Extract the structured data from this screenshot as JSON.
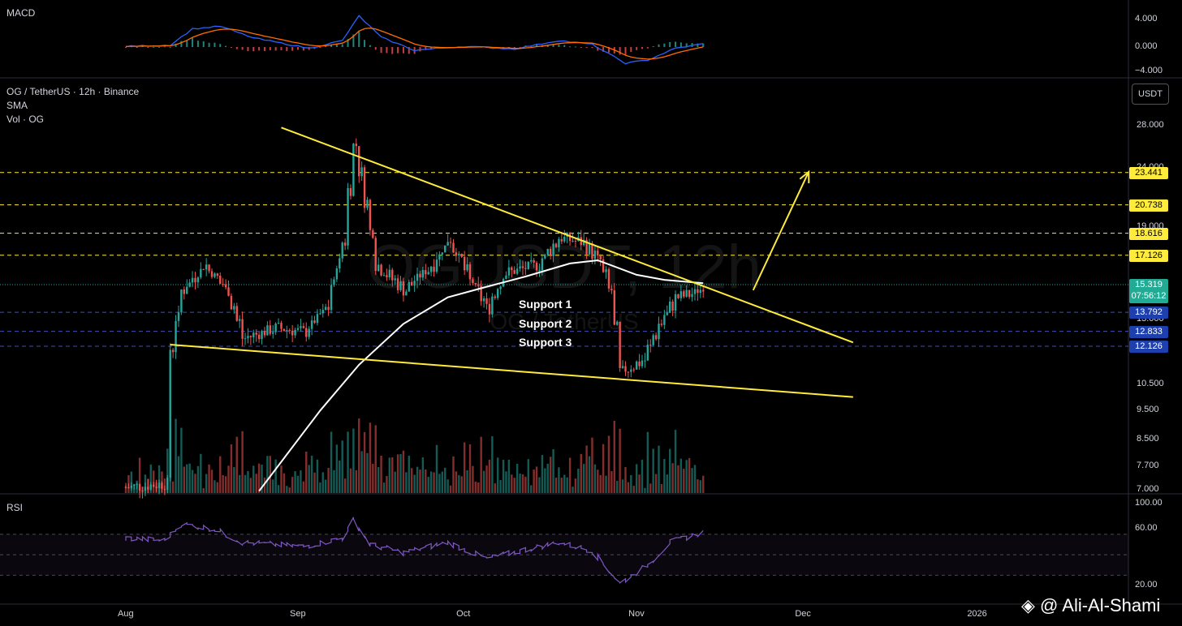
{
  "symbol_title": "OG / TetherUS · 12h · Binance",
  "indicator_sma": "SMA",
  "indicator_vol": "Vol · OG",
  "macd_title": "MACD",
  "rsi_title": "RSI",
  "currency_button": "USDT",
  "watermark_big": "OGUSDT, 12h",
  "watermark_small": "OG / TetherUS",
  "credit": "@ Ali-Al-Shami",
  "supports": [
    "Support 1",
    "Support 2",
    "Support 3"
  ],
  "colors": {
    "up": "#26a69a",
    "down": "#ef5350",
    "sma": "#ffffff",
    "trendline": "#ffeb3b",
    "macd": "#2962ff",
    "signal": "#ff6d00",
    "rsi": "#7e57c2"
  },
  "chart_data": {
    "type": "line",
    "x_axis_labels": [
      "Aug",
      "Sep",
      "Oct",
      "Nov",
      "Dec",
      "2026"
    ],
    "price_axis": {
      "scale": "log",
      "ticks": [
        "28.000",
        "24.000",
        "19.000",
        "13.000",
        "10.500",
        "9.500",
        "8.500",
        "7.700",
        "7.000"
      ]
    },
    "macd_axis": {
      "ticks": [
        "4.000",
        "0.000",
        "−4.000"
      ]
    },
    "rsi_axis": {
      "ticks": [
        "100.00",
        "60.00",
        "20.00"
      ],
      "bands": [
        70,
        50,
        30
      ]
    },
    "level_labels": [
      {
        "value": 23.441,
        "text": "23.441",
        "style": "yellow"
      },
      {
        "value": 20.738,
        "text": "20.738",
        "style": "yellow"
      },
      {
        "value": 18.616,
        "text": "18.616",
        "style": "yellow"
      },
      {
        "value": 17.126,
        "text": "17.126",
        "style": "yellow"
      },
      {
        "value": 13.792,
        "text": "13.792",
        "style": "blue"
      },
      {
        "value": 12.833,
        "text": "12.833",
        "style": "blue"
      },
      {
        "value": 12.126,
        "text": "12.126",
        "style": "blue"
      }
    ],
    "current_price": {
      "value": 15.319,
      "text": "15.319",
      "countdown": "07:56:12"
    },
    "trendlines": [
      {
        "name": "upper",
        "from": {
          "date": "2025-08-29",
          "price": 27.8
        },
        "to": {
          "date": "2025-12-10",
          "price": 12.3
        }
      },
      {
        "name": "lower",
        "from": {
          "date": "2025-08-09",
          "price": 12.2
        },
        "to": {
          "date": "2025-12-10",
          "price": 10.0
        }
      }
    ],
    "projection_arrow": {
      "from": {
        "date": "2025-11-22",
        "price": 15.0
      },
      "to": {
        "date": "2025-12-02",
        "price": 23.5
      }
    },
    "price_path": [
      {
        "date": "2025-08-01",
        "price": 7.1
      },
      {
        "date": "2025-08-08",
        "price": 7.2
      },
      {
        "date": "2025-08-09",
        "price": 12.0
      },
      {
        "date": "2025-08-11",
        "price": 15.0
      },
      {
        "date": "2025-08-15",
        "price": 16.5
      },
      {
        "date": "2025-08-19",
        "price": 15.0
      },
      {
        "date": "2025-08-22",
        "price": 12.5
      },
      {
        "date": "2025-08-28",
        "price": 13.0
      },
      {
        "date": "2025-09-02",
        "price": 12.8
      },
      {
        "date": "2025-09-06",
        "price": 14.0
      },
      {
        "date": "2025-09-09",
        "price": 18.0
      },
      {
        "date": "2025-09-11",
        "price": 26.0
      },
      {
        "date": "2025-09-13",
        "price": 21.0
      },
      {
        "date": "2025-09-15",
        "price": 16.5
      },
      {
        "date": "2025-09-20",
        "price": 15.0
      },
      {
        "date": "2025-09-25",
        "price": 16.5
      },
      {
        "date": "2025-09-28",
        "price": 18.2
      },
      {
        "date": "2025-10-02",
        "price": 15.5
      },
      {
        "date": "2025-10-05",
        "price": 14.0
      },
      {
        "date": "2025-10-08",
        "price": 16.0
      },
      {
        "date": "2025-10-14",
        "price": 16.5
      },
      {
        "date": "2025-10-18",
        "price": 18.3
      },
      {
        "date": "2025-10-22",
        "price": 18.0
      },
      {
        "date": "2025-10-25",
        "price": 16.8
      },
      {
        "date": "2025-10-27",
        "price": 15.0
      },
      {
        "date": "2025-10-29",
        "price": 11.0
      },
      {
        "date": "2025-11-02",
        "price": 11.5
      },
      {
        "date": "2025-11-05",
        "price": 13.2
      },
      {
        "date": "2025-11-08",
        "price": 14.6
      },
      {
        "date": "2025-11-11",
        "price": 14.8
      },
      {
        "date": "2025-11-13",
        "price": 15.3
      }
    ],
    "sma_path": [
      {
        "date": "2025-08-25",
        "price": 7.0
      },
      {
        "date": "2025-09-05",
        "price": 9.5
      },
      {
        "date": "2025-09-12",
        "price": 11.3
      },
      {
        "date": "2025-09-20",
        "price": 13.2
      },
      {
        "date": "2025-09-28",
        "price": 14.6
      },
      {
        "date": "2025-10-05",
        "price": 15.2
      },
      {
        "date": "2025-10-12",
        "price": 15.8
      },
      {
        "date": "2025-10-20",
        "price": 16.6
      },
      {
        "date": "2025-10-25",
        "price": 16.8
      },
      {
        "date": "2025-11-01",
        "price": 15.9
      },
      {
        "date": "2025-11-06",
        "price": 15.6
      },
      {
        "date": "2025-11-13",
        "price": 15.4
      }
    ],
    "macd_path": [
      {
        "date": "2025-08-01",
        "value": 0.1
      },
      {
        "date": "2025-08-09",
        "value": 0.3
      },
      {
        "date": "2025-08-13",
        "value": 2.8
      },
      {
        "date": "2025-08-18",
        "value": 3.2
      },
      {
        "date": "2025-08-24",
        "value": 1.4
      },
      {
        "date": "2025-09-03",
        "value": -0.2
      },
      {
        "date": "2025-09-09",
        "value": 1.0
      },
      {
        "date": "2025-09-12",
        "value": 4.8
      },
      {
        "date": "2025-09-16",
        "value": 1.5
      },
      {
        "date": "2025-09-22",
        "value": -0.5
      },
      {
        "date": "2025-10-01",
        "value": 0.1
      },
      {
        "date": "2025-10-10",
        "value": -0.3
      },
      {
        "date": "2025-10-18",
        "value": 1.0
      },
      {
        "date": "2025-10-24",
        "value": 0.4
      },
      {
        "date": "2025-10-30",
        "value": -2.5
      },
      {
        "date": "2025-11-03",
        "value": -2.0
      },
      {
        "date": "2025-11-08",
        "value": -0.2
      },
      {
        "date": "2025-11-13",
        "value": 0.5
      }
    ],
    "rsi_path": [
      {
        "date": "2025-08-01",
        "value": 66
      },
      {
        "date": "2025-08-08",
        "value": 64
      },
      {
        "date": "2025-08-11",
        "value": 80
      },
      {
        "date": "2025-08-17",
        "value": 75
      },
      {
        "date": "2025-08-22",
        "value": 62
      },
      {
        "date": "2025-09-02",
        "value": 58
      },
      {
        "date": "2025-09-09",
        "value": 66
      },
      {
        "date": "2025-09-11",
        "value": 84
      },
      {
        "date": "2025-09-14",
        "value": 60
      },
      {
        "date": "2025-09-20",
        "value": 52
      },
      {
        "date": "2025-09-28",
        "value": 62
      },
      {
        "date": "2025-10-05",
        "value": 46
      },
      {
        "date": "2025-10-12",
        "value": 55
      },
      {
        "date": "2025-10-18",
        "value": 62
      },
      {
        "date": "2025-10-24",
        "value": 54
      },
      {
        "date": "2025-10-29",
        "value": 22
      },
      {
        "date": "2025-11-03",
        "value": 40
      },
      {
        "date": "2025-11-07",
        "value": 62
      },
      {
        "date": "2025-11-13",
        "value": 72
      }
    ]
  }
}
